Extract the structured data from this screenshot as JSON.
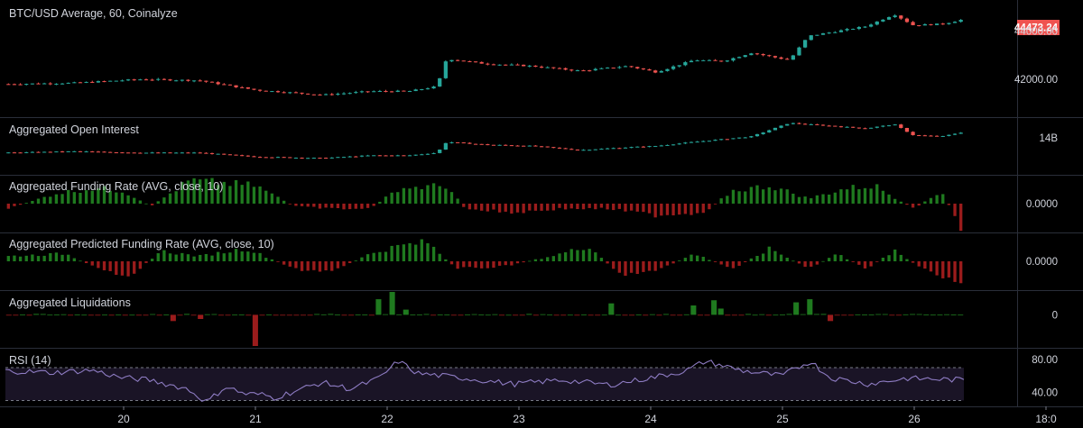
{
  "header": {
    "title": "BTC/USD Average, 60, Coinalyze",
    "last_price_label": "44473.24"
  },
  "colors": {
    "background": "#000000",
    "up": "#26a69a",
    "down": "#ef5350",
    "funding_up": "#1f7a1f",
    "funding_down": "#9b1c1c",
    "rsi_line": "#8e7cc3",
    "rsi_band": "#1a1426",
    "grid": "#2a2e39",
    "badge": "#ef5350",
    "text": "#d1d4dc"
  },
  "x_axis": {
    "ticks": [
      "20",
      "21",
      "22",
      "23",
      "24",
      "25",
      "26",
      "18:0"
    ]
  },
  "chart_data": [
    {
      "type": "candlestick",
      "title": "BTC/USD Average, 60, Coinalyze",
      "ylim": [
        40500,
        45000
      ],
      "y_ticks": [
        "44000.00",
        "42000.00"
      ],
      "y_tick_values": [
        44000,
        42000
      ],
      "last_value": 44473.24,
      "close_anchors": [
        [
          0,
          41800
        ],
        [
          0.07,
          41850
        ],
        [
          0.14,
          42000
        ],
        [
          0.2,
          41950
        ],
        [
          0.26,
          41550
        ],
        [
          0.33,
          41350
        ],
        [
          0.38,
          41500
        ],
        [
          0.42,
          41500
        ],
        [
          0.45,
          41700
        ],
        [
          0.46,
          42850
        ],
        [
          0.5,
          42650
        ],
        [
          0.55,
          42550
        ],
        [
          0.6,
          42350
        ],
        [
          0.65,
          42550
        ],
        [
          0.68,
          42300
        ],
        [
          0.72,
          42800
        ],
        [
          0.75,
          42750
        ],
        [
          0.78,
          43100
        ],
        [
          0.82,
          42800
        ],
        [
          0.84,
          43800
        ],
        [
          0.9,
          44200
        ],
        [
          0.93,
          44700
        ],
        [
          0.95,
          44250
        ],
        [
          0.98,
          44300
        ],
        [
          1.0,
          44470
        ]
      ]
    },
    {
      "type": "candlestick",
      "title": "Aggregated Open Interest",
      "ylim": [
        12.7,
        14.7
      ],
      "y_ticks": [
        "14B"
      ],
      "y_tick_values": [
        14.0
      ],
      "close_anchors": [
        [
          0,
          13.45
        ],
        [
          0.07,
          13.5
        ],
        [
          0.14,
          13.45
        ],
        [
          0.2,
          13.45
        ],
        [
          0.26,
          13.3
        ],
        [
          0.33,
          13.25
        ],
        [
          0.38,
          13.35
        ],
        [
          0.42,
          13.35
        ],
        [
          0.45,
          13.45
        ],
        [
          0.46,
          13.85
        ],
        [
          0.5,
          13.75
        ],
        [
          0.55,
          13.7
        ],
        [
          0.6,
          13.55
        ],
        [
          0.65,
          13.65
        ],
        [
          0.68,
          13.7
        ],
        [
          0.72,
          13.85
        ],
        [
          0.75,
          13.95
        ],
        [
          0.78,
          14.05
        ],
        [
          0.82,
          14.55
        ],
        [
          0.84,
          14.5
        ],
        [
          0.9,
          14.35
        ],
        [
          0.93,
          14.5
        ],
        [
          0.95,
          14.1
        ],
        [
          0.98,
          14.05
        ],
        [
          1.0,
          14.2
        ]
      ]
    },
    {
      "type": "bar",
      "title": "Aggregated Funding Rate (AVG, close, 10)",
      "ylim": [
        -1,
        1
      ],
      "y_ticks": [
        "0.0000"
      ],
      "y_tick_values": [
        0
      ],
      "anchors": [
        [
          0,
          -0.2
        ],
        [
          0.05,
          0.4
        ],
        [
          0.09,
          0.6
        ],
        [
          0.12,
          0.5
        ],
        [
          0.15,
          -0.1
        ],
        [
          0.19,
          0.9
        ],
        [
          0.26,
          0.7
        ],
        [
          0.3,
          -0.1
        ],
        [
          0.34,
          -0.2
        ],
        [
          0.38,
          -0.2
        ],
        [
          0.41,
          0.6
        ],
        [
          0.46,
          0.7
        ],
        [
          0.48,
          -0.2
        ],
        [
          0.53,
          -0.35
        ],
        [
          0.58,
          -0.2
        ],
        [
          0.63,
          -0.2
        ],
        [
          0.68,
          -0.45
        ],
        [
          0.73,
          -0.35
        ],
        [
          0.76,
          0.5
        ],
        [
          0.8,
          0.7
        ],
        [
          0.84,
          0.2
        ],
        [
          0.88,
          0.6
        ],
        [
          0.91,
          0.7
        ],
        [
          0.95,
          -0.2
        ],
        [
          0.98,
          0.5
        ],
        [
          1.0,
          -1.0
        ]
      ]
    },
    {
      "type": "bar",
      "title": "Aggregated Predicted Funding Rate (AVG, close, 10)",
      "ylim": [
        -1,
        1
      ],
      "y_ticks": [
        "0.0000"
      ],
      "y_tick_values": [
        0
      ],
      "anchors": [
        [
          0,
          0.2
        ],
        [
          0.06,
          0.3
        ],
        [
          0.1,
          -0.4
        ],
        [
          0.13,
          -0.5
        ],
        [
          0.16,
          0.4
        ],
        [
          0.2,
          0.2
        ],
        [
          0.25,
          0.5
        ],
        [
          0.3,
          -0.3
        ],
        [
          0.34,
          -0.4
        ],
        [
          0.38,
          0.3
        ],
        [
          0.41,
          0.6
        ],
        [
          0.44,
          0.75
        ],
        [
          0.47,
          -0.3
        ],
        [
          0.52,
          -0.2
        ],
        [
          0.57,
          0.2
        ],
        [
          0.61,
          0.6
        ],
        [
          0.64,
          -0.5
        ],
        [
          0.68,
          -0.4
        ],
        [
          0.72,
          0.3
        ],
        [
          0.76,
          -0.3
        ],
        [
          0.8,
          0.5
        ],
        [
          0.84,
          -0.3
        ],
        [
          0.87,
          0.3
        ],
        [
          0.9,
          -0.3
        ],
        [
          0.93,
          0.4
        ],
        [
          0.96,
          -0.3
        ],
        [
          1.0,
          -0.95
        ]
      ]
    },
    {
      "type": "bar",
      "title": "Aggregated Liquidations",
      "ylim": [
        -30,
        22
      ],
      "y_ticks": [
        "0"
      ],
      "y_tick_values": [
        0
      ],
      "spikes": [
        [
          0.17,
          -6
        ],
        [
          0.2,
          -4
        ],
        [
          0.26,
          -30
        ],
        [
          0.39,
          15
        ],
        [
          0.4,
          22
        ],
        [
          0.42,
          5
        ],
        [
          0.63,
          11
        ],
        [
          0.72,
          9
        ],
        [
          0.74,
          14
        ],
        [
          0.75,
          6
        ],
        [
          0.83,
          12
        ],
        [
          0.84,
          15
        ],
        [
          0.86,
          -6
        ]
      ]
    },
    {
      "type": "line",
      "title": "RSI (14)",
      "ylim": [
        25,
        92
      ],
      "y_ticks": [
        "80.00",
        "40.00"
      ],
      "y_tick_values": [
        80,
        40
      ],
      "bands": [
        70,
        30
      ],
      "anchors": [
        [
          0,
          66
        ],
        [
          0.05,
          64
        ],
        [
          0.09,
          67
        ],
        [
          0.12,
          58
        ],
        [
          0.15,
          55
        ],
        [
          0.19,
          44
        ],
        [
          0.21,
          28
        ],
        [
          0.23,
          47
        ],
        [
          0.25,
          38
        ],
        [
          0.27,
          37
        ],
        [
          0.28,
          33
        ],
        [
          0.33,
          52
        ],
        [
          0.36,
          44
        ],
        [
          0.39,
          57
        ],
        [
          0.41,
          78
        ],
        [
          0.43,
          63
        ],
        [
          0.48,
          57
        ],
        [
          0.53,
          50
        ],
        [
          0.58,
          55
        ],
        [
          0.63,
          49
        ],
        [
          0.67,
          57
        ],
        [
          0.71,
          66
        ],
        [
          0.73,
          78
        ],
        [
          0.77,
          66
        ],
        [
          0.81,
          60
        ],
        [
          0.84,
          78
        ],
        [
          0.86,
          58
        ],
        [
          0.9,
          50
        ],
        [
          0.94,
          57
        ],
        [
          1.0,
          55
        ]
      ]
    }
  ]
}
